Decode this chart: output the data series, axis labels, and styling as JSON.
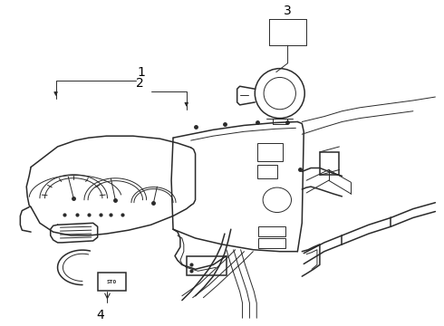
{
  "background_color": "#ffffff",
  "line_color": "#2a2a2a",
  "label_color": "#000000",
  "fig_width": 4.9,
  "fig_height": 3.6,
  "dpi": 100,
  "label_fontsize": 10
}
